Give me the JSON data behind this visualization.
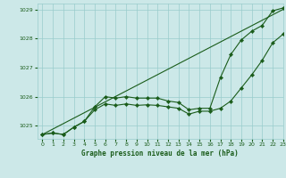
{
  "title": "Graphe pression niveau de la mer (hPa)",
  "background_color": "#cce8e8",
  "grid_color": "#99cccc",
  "line_color": "#1a5c1a",
  "xlim": [
    -0.5,
    23
  ],
  "ylim": [
    1024.55,
    1029.2
  ],
  "yticks": [
    1025,
    1026,
    1027,
    1028,
    1029
  ],
  "xticks": [
    0,
    1,
    2,
    3,
    4,
    5,
    6,
    7,
    8,
    9,
    10,
    11,
    12,
    13,
    14,
    15,
    16,
    17,
    18,
    19,
    20,
    21,
    22,
    23
  ],
  "straight_line_x": [
    0,
    23
  ],
  "straight_line_y": [
    1024.7,
    1029.0
  ],
  "series1_x": [
    0,
    1,
    2,
    3,
    4,
    5,
    6,
    7,
    8,
    9,
    10,
    11,
    12,
    13,
    14,
    15,
    16,
    17,
    18,
    19,
    20,
    21,
    22,
    23
  ],
  "series1_y": [
    1024.7,
    1024.75,
    1024.7,
    1024.95,
    1025.15,
    1025.65,
    1026.0,
    1025.95,
    1026.0,
    1025.95,
    1025.95,
    1025.95,
    1025.85,
    1025.8,
    1025.55,
    1025.6,
    1025.6,
    1026.65,
    1027.45,
    1027.95,
    1028.25,
    1028.45,
    1028.95,
    1029.05
  ],
  "series2_x": [
    0,
    1,
    2,
    3,
    4,
    5,
    6,
    7,
    8,
    9,
    10,
    11,
    12,
    13,
    14,
    15,
    16,
    17,
    18,
    19,
    20,
    21,
    22,
    23
  ],
  "series2_y": [
    1024.7,
    1024.75,
    1024.7,
    1024.95,
    1025.15,
    1025.55,
    1025.75,
    1025.7,
    1025.75,
    1025.7,
    1025.72,
    1025.7,
    1025.65,
    1025.6,
    1025.4,
    1025.5,
    1025.5,
    1025.6,
    1025.85,
    1026.3,
    1026.75,
    1027.25,
    1027.85,
    1028.15
  ],
  "marker": "D",
  "marker_size": 2.2,
  "linewidth": 0.8
}
